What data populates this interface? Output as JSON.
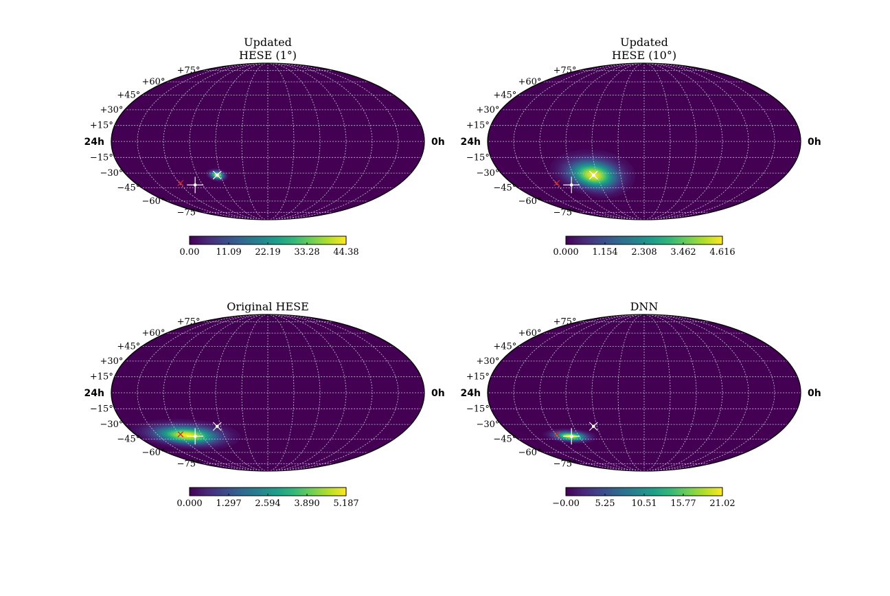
{
  "figure": {
    "colormap": [
      "#440154",
      "#482878",
      "#3e4989",
      "#31688e",
      "#26828e",
      "#1f9e89",
      "#35b779",
      "#6ece58",
      "#b5de2b",
      "#fde725"
    ],
    "grid_color": "#c8c8d8",
    "source_marker_color": "#d62728",
    "estimate_marker_color": "#ffffff"
  },
  "chart_data": [
    {
      "type": "heatmap",
      "projection": "mollweide",
      "title": [
        "Updated",
        "HESE (1°)"
      ],
      "ra_left_label": "24h",
      "ra_right_label": "0h",
      "dec_labels": [
        "+75°",
        "+60°",
        "+45°",
        "+30°",
        "+15°",
        "−15°",
        "−30°",
        "−45°",
        "−60°",
        "−75°"
      ],
      "hotspot": {
        "ra_h": 16.3,
        "dec_deg": -32,
        "sigma_ra_h": 0.35,
        "sigma_dec_deg": 2.5,
        "peak": 44.38
      },
      "markers": {
        "source_x": {
          "ra_h": 19.9,
          "dec_deg": -40
        },
        "cross": {
          "ra_h": 18.7,
          "dec_deg": -42
        },
        "x_white": {
          "ra_h": 16.3,
          "dec_deg": -32
        }
      },
      "colorbar": {
        "ticks": [
          "0.00",
          "11.09",
          "22.19",
          "33.28",
          "44.38"
        ],
        "vmin": 0,
        "vmax": 44.38
      }
    },
    {
      "type": "heatmap",
      "projection": "mollweide",
      "title": [
        "Updated",
        "HESE (10°)"
      ],
      "ra_left_label": "24h",
      "ra_right_label": "0h",
      "dec_labels": [
        "+75°",
        "+60°",
        "+45°",
        "+30°",
        "+15°",
        "−15°",
        "−30°",
        "−45°",
        "−60°",
        "−75°"
      ],
      "hotspot": {
        "ra_h": 16.3,
        "dec_deg": -32,
        "sigma_ra_h": 1.3,
        "sigma_dec_deg": 9,
        "peak": 4.616
      },
      "markers": {
        "source_x": {
          "ra_h": 19.9,
          "dec_deg": -40
        },
        "cross": {
          "ra_h": 18.7,
          "dec_deg": -42
        },
        "x_white": {
          "ra_h": 16.3,
          "dec_deg": -32
        }
      },
      "colorbar": {
        "ticks": [
          "0.000",
          "1.154",
          "2.308",
          "3.462",
          "4.616"
        ],
        "vmin": 0,
        "vmax": 4.616
      }
    },
    {
      "type": "heatmap",
      "projection": "mollweide",
      "title": [
        "Original HESE"
      ],
      "ra_left_label": "24h",
      "ra_right_label": "0h",
      "dec_labels": [
        "+75°",
        "+60°",
        "+45°",
        "+30°",
        "+15°",
        "−15°",
        "−30°",
        "−45°",
        "−60°",
        "−75°"
      ],
      "hotspot": {
        "ra_h": 19.4,
        "dec_deg": -41,
        "sigma_ra_h": 1.8,
        "sigma_dec_deg": 6,
        "peak": 5.187
      },
      "markers": {
        "source_x": {
          "ra_h": 19.9,
          "dec_deg": -40
        },
        "cross": {
          "ra_h": 18.7,
          "dec_deg": -42
        },
        "x_white": {
          "ra_h": 16.3,
          "dec_deg": -32
        }
      },
      "colorbar": {
        "ticks": [
          "0.000",
          "1.297",
          "2.594",
          "3.890",
          "5.187"
        ],
        "vmin": 0,
        "vmax": 5.187
      }
    },
    {
      "type": "heatmap",
      "projection": "mollweide",
      "title": [
        "DNN"
      ],
      "ra_left_label": "24h",
      "ra_right_label": "0h",
      "dec_labels": [
        "+75°",
        "+60°",
        "+45°",
        "+30°",
        "+15°",
        "−15°",
        "−30°",
        "−45°",
        "−60°",
        "−75°"
      ],
      "hotspot": {
        "ra_h": 18.8,
        "dec_deg": -42,
        "sigma_ra_h": 0.9,
        "sigma_dec_deg": 3,
        "peak": 21.02
      },
      "markers": {
        "source_x": {
          "ra_h": 19.9,
          "dec_deg": -40
        },
        "cross": {
          "ra_h": 18.7,
          "dec_deg": -42
        },
        "x_white": {
          "ra_h": 16.3,
          "dec_deg": -32
        }
      },
      "colorbar": {
        "ticks": [
          "−0.00",
          "5.25",
          "10.51",
          "15.77",
          "21.02"
        ],
        "vmin": 0,
        "vmax": 21.02
      }
    }
  ]
}
